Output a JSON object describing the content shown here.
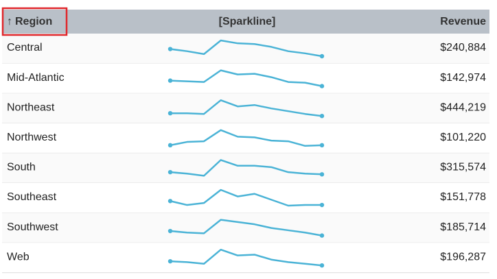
{
  "header": {
    "sort_indicator": "↑",
    "region": "Region",
    "sparkline": "[Sparkline]",
    "revenue": "Revenue"
  },
  "rows": [
    {
      "region": "Central",
      "sparkline": [
        18,
        15,
        11,
        30,
        26,
        25,
        21,
        15,
        12,
        8
      ],
      "revenue": "$240,884"
    },
    {
      "region": "Mid-Atlantic",
      "sparkline": [
        12,
        11,
        10,
        27,
        21,
        22,
        17,
        10,
        9,
        4
      ],
      "revenue": "$142,974"
    },
    {
      "region": "Northeast",
      "sparkline": [
        9,
        9,
        8,
        28,
        19,
        21,
        16,
        12,
        8,
        5
      ],
      "revenue": "$444,219"
    },
    {
      "region": "Northwest",
      "sparkline": [
        8,
        13,
        14,
        31,
        21,
        20,
        15,
        14,
        7,
        8
      ],
      "revenue": "$101,220"
    },
    {
      "region": "South",
      "sparkline": [
        10,
        8,
        5,
        27,
        19,
        19,
        17,
        10,
        8,
        7
      ],
      "revenue": "$315,574"
    },
    {
      "region": "Southeast",
      "sparkline": [
        13,
        7,
        10,
        30,
        20,
        24,
        15,
        6,
        7,
        7
      ],
      "revenue": "$151,778"
    },
    {
      "region": "Southwest",
      "sparkline": [
        10,
        8,
        7,
        25,
        22,
        19,
        14,
        11,
        8,
        4
      ],
      "revenue": "$185,714"
    },
    {
      "region": "Web",
      "sparkline": [
        11,
        10,
        8,
        25,
        18,
        19,
        13,
        10,
        8,
        6
      ],
      "revenue": "$196,287"
    }
  ]
}
